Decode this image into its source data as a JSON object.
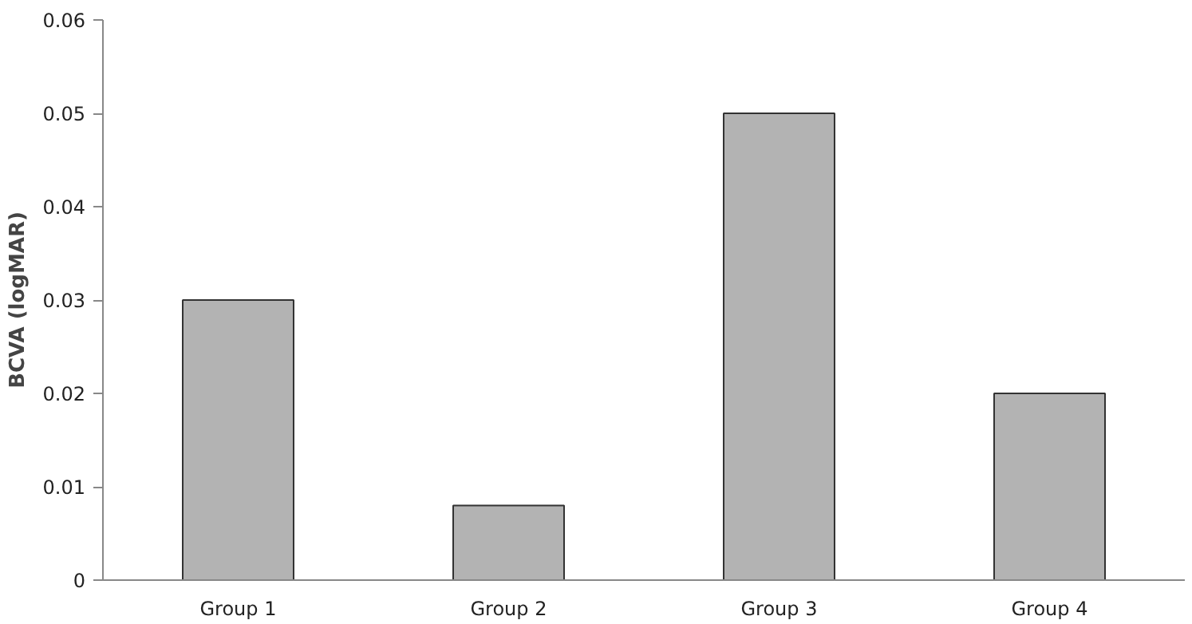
{
  "chart_data": {
    "type": "bar",
    "categories": [
      "Group 1",
      "Group 2",
      "Group 3",
      "Group 4"
    ],
    "values": [
      0.03,
      0.008,
      0.05,
      0.02
    ],
    "color": "#b3b3b3",
    "ylabel": "BCVA (logMAR)",
    "ylim": [
      0,
      0.06
    ],
    "yticks": [
      0,
      0.01,
      0.02,
      0.03,
      0.04,
      0.05,
      0.06
    ],
    "grid": false
  }
}
